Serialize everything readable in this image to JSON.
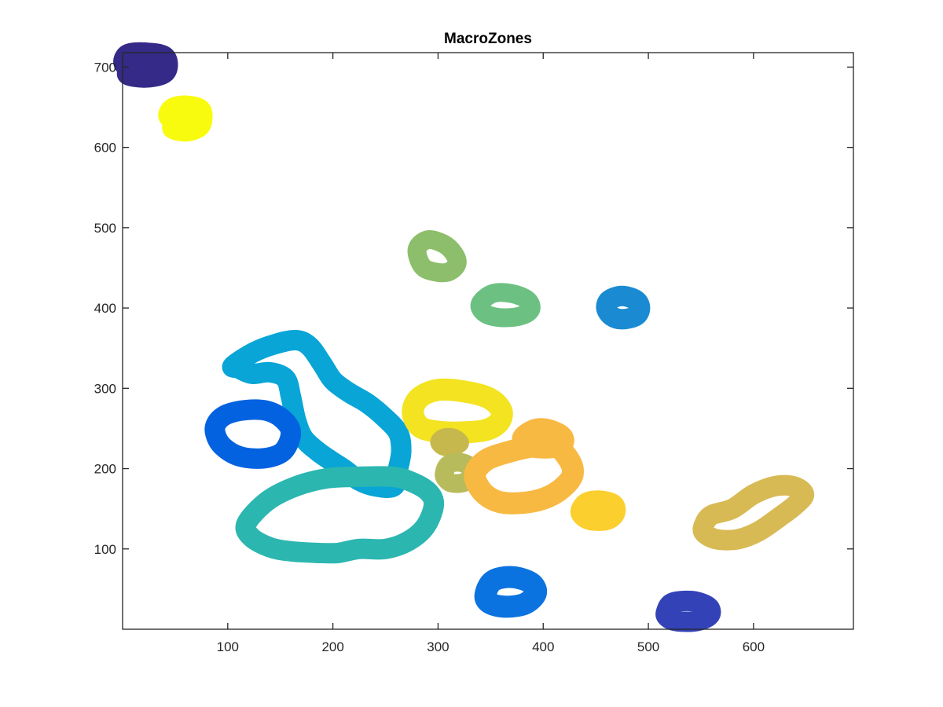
{
  "chart_data": {
    "type": "scatter",
    "title": "MacroZones",
    "xlabel": "",
    "ylabel": "",
    "xlim": [
      0,
      695
    ],
    "ylim": [
      0,
      718
    ],
    "x_ticks": [
      100,
      200,
      300,
      400,
      500,
      600
    ],
    "y_ticks": [
      100,
      200,
      300,
      400,
      500,
      600,
      700
    ],
    "grid": false,
    "legend": "none",
    "zones": [
      {
        "color": "#352a87",
        "ring_width": 28,
        "outline": [
          [
            22,
            703
          ],
          [
            3,
            703
          ],
          [
            5,
            715
          ],
          [
            22,
            717
          ],
          [
            40,
            712
          ],
          [
            40,
            694
          ],
          [
            22,
            688
          ],
          [
            5,
            692
          ]
        ]
      },
      {
        "color": "#f9fb0e",
        "ring_width": 28,
        "outline": [
          [
            60,
            636
          ],
          [
            45,
            638
          ],
          [
            48,
            648
          ],
          [
            60,
            651
          ],
          [
            73,
            647
          ],
          [
            75,
            636
          ],
          [
            72,
            626
          ],
          [
            60,
            621
          ],
          [
            48,
            625
          ]
        ]
      },
      {
        "color": "#8dbe6b",
        "ring_width": 24,
        "outline": [
          [
            280,
            473
          ],
          [
            290,
            485
          ],
          [
            305,
            480
          ],
          [
            315,
            468
          ],
          [
            318,
            455
          ],
          [
            310,
            445
          ],
          [
            297,
            445
          ],
          [
            285,
            452
          ]
        ]
      },
      {
        "color": "#6cc182",
        "ring_width": 24,
        "outline": [
          [
            340,
            405
          ],
          [
            352,
            418
          ],
          [
            370,
            418
          ],
          [
            385,
            410
          ],
          [
            388,
            398
          ],
          [
            378,
            390
          ],
          [
            360,
            388
          ],
          [
            345,
            393
          ]
        ]
      },
      {
        "color": "#1a8bd2",
        "ring_width": 26,
        "outline": [
          [
            475,
            415
          ],
          [
            463,
            410
          ],
          [
            460,
            400
          ],
          [
            465,
            390
          ],
          [
            475,
            386
          ],
          [
            488,
            390
          ],
          [
            492,
            400
          ],
          [
            488,
            410
          ]
        ]
      },
      {
        "color": "#08a5d6",
        "ring_width": 26,
        "outline": [
          [
            105,
            328
          ],
          [
            125,
            345
          ],
          [
            145,
            355
          ],
          [
            165,
            360
          ],
          [
            178,
            352
          ],
          [
            190,
            330
          ],
          [
            200,
            310
          ],
          [
            215,
            295
          ],
          [
            232,
            282
          ],
          [
            248,
            265
          ],
          [
            262,
            245
          ],
          [
            265,
            222
          ],
          [
            262,
            200
          ],
          [
            258,
            178
          ],
          [
            240,
            178
          ],
          [
            225,
            185
          ],
          [
            212,
            198
          ],
          [
            198,
            210
          ],
          [
            185,
            222
          ],
          [
            172,
            238
          ],
          [
            165,
            260
          ],
          [
            160,
            290
          ],
          [
            155,
            312
          ],
          [
            140,
            320
          ],
          [
            123,
            318
          ],
          [
            110,
            325
          ]
        ]
      },
      {
        "color": "#0262e0",
        "ring_width": 26,
        "outline": [
          [
            90,
            258
          ],
          [
            100,
            268
          ],
          [
            118,
            273
          ],
          [
            137,
            272
          ],
          [
            152,
            262
          ],
          [
            160,
            245
          ],
          [
            153,
            222
          ],
          [
            135,
            213
          ],
          [
            112,
            215
          ],
          [
            95,
            228
          ],
          [
            88,
            245
          ]
        ]
      },
      {
        "color": "#2cb6b0",
        "ring_width": 26,
        "outline": [
          [
            118,
            132
          ],
          [
            138,
            160
          ],
          [
            165,
            178
          ],
          [
            195,
            188
          ],
          [
            228,
            190
          ],
          [
            255,
            190
          ],
          [
            272,
            185
          ],
          [
            290,
            172
          ],
          [
            296,
            155
          ],
          [
            288,
            128
          ],
          [
            272,
            110
          ],
          [
            250,
            100
          ],
          [
            225,
            100
          ],
          [
            205,
            95
          ],
          [
            185,
            95
          ],
          [
            160,
            97
          ],
          [
            140,
            102
          ],
          [
            122,
            115
          ]
        ]
      },
      {
        "color": "#f3e320",
        "ring_width": 28,
        "outline": [
          [
            276,
            270
          ],
          [
            282,
            288
          ],
          [
            300,
            298
          ],
          [
            325,
            296
          ],
          [
            348,
            288
          ],
          [
            360,
            273
          ],
          [
            358,
            258
          ],
          [
            345,
            248
          ],
          [
            322,
            245
          ],
          [
            300,
            246
          ],
          [
            283,
            252
          ]
        ]
      },
      {
        "color": "#c7b84d",
        "ring_width": 20,
        "outline": [
          [
            300,
            233
          ],
          [
            305,
            240
          ],
          [
            315,
            240
          ],
          [
            322,
            232
          ],
          [
            315,
            226
          ],
          [
            305,
            226
          ]
        ]
      },
      {
        "color": "#b8bb5c",
        "ring_width": 24,
        "outline": [
          [
            306,
            195
          ],
          [
            310,
            205
          ],
          [
            320,
            208
          ],
          [
            330,
            203
          ],
          [
            332,
            193
          ],
          [
            325,
            183
          ],
          [
            313,
            182
          ],
          [
            307,
            188
          ]
        ]
      },
      {
        "color": "#f8b942",
        "ring_width": 28,
        "outline": [
          [
            335,
            192
          ],
          [
            345,
            210
          ],
          [
            365,
            220
          ],
          [
            392,
            228
          ],
          [
            412,
            228
          ],
          [
            425,
            210
          ],
          [
            428,
            193
          ],
          [
            420,
            178
          ],
          [
            405,
            165
          ],
          [
            385,
            158
          ],
          [
            360,
            158
          ],
          [
            343,
            170
          ]
        ]
      },
      {
        "color": "#f8b942",
        "ring_width": 24,
        "outline": [
          [
            380,
            240
          ],
          [
            392,
            250
          ],
          [
            405,
            250
          ],
          [
            418,
            242
          ],
          [
            420,
            232
          ],
          [
            410,
            225
          ],
          [
            392,
            225
          ],
          [
            382,
            230
          ]
        ]
      },
      {
        "color": "#fbcf2d",
        "ring_width": 26,
        "outline": [
          [
            436,
            149
          ],
          [
            442,
            158
          ],
          [
            455,
            160
          ],
          [
            467,
            155
          ],
          [
            468,
            144
          ],
          [
            460,
            136
          ],
          [
            445,
            136
          ],
          [
            437,
            142
          ]
        ]
      },
      {
        "color": "#d8ba55",
        "ring_width": 26,
        "outline": [
          [
            553,
            130
          ],
          [
            560,
            142
          ],
          [
            580,
            150
          ],
          [
            600,
            168
          ],
          [
            620,
            178
          ],
          [
            638,
            178
          ],
          [
            648,
            168
          ],
          [
            640,
            155
          ],
          [
            625,
            140
          ],
          [
            605,
            122
          ],
          [
            585,
            112
          ],
          [
            565,
            112
          ],
          [
            553,
            120
          ]
        ]
      },
      {
        "color": "#0b73e0",
        "ring_width": 28,
        "outline": [
          [
            345,
            42
          ],
          [
            352,
            60
          ],
          [
            370,
            65
          ],
          [
            388,
            58
          ],
          [
            393,
            45
          ],
          [
            383,
            32
          ],
          [
            365,
            28
          ],
          [
            350,
            32
          ]
        ]
      },
      {
        "color": "#3342b6",
        "ring_width": 26,
        "outline": [
          [
            517,
            22
          ],
          [
            523,
            33
          ],
          [
            542,
            35
          ],
          [
            557,
            28
          ],
          [
            558,
            17
          ],
          [
            545,
            10
          ],
          [
            527,
            10
          ],
          [
            518,
            15
          ]
        ]
      }
    ]
  }
}
